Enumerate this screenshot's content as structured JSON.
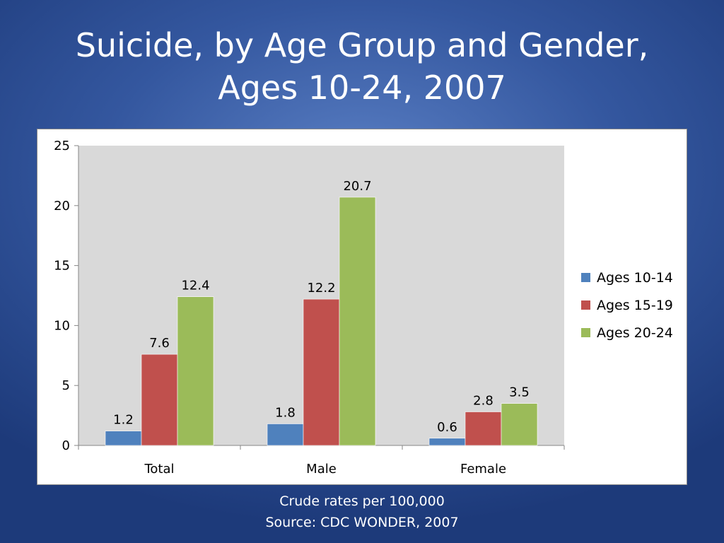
{
  "slide": {
    "title_line1": "Suicide, by Age Group and Gender,",
    "title_line2": "Ages 10-24, 2007",
    "caption_line1": "Crude rates per 100,000",
    "caption_line2": "Source: CDC WONDER, 2007"
  },
  "chart_data": {
    "type": "bar",
    "title": "",
    "xlabel": "",
    "ylabel": "",
    "categories": [
      "Total",
      "Male",
      "Female"
    ],
    "series": [
      {
        "name": "Ages 10-14",
        "values": [
          1.2,
          1.8,
          0.6
        ],
        "color": "#4f81bd"
      },
      {
        "name": "Ages 15-19",
        "values": [
          7.6,
          12.2,
          2.8
        ],
        "color": "#c0504d"
      },
      {
        "name": "Ages 20-24",
        "values": [
          12.4,
          20.7,
          3.5
        ],
        "color": "#9bbb59"
      }
    ],
    "ylim": [
      0,
      25
    ],
    "yticks": [
      0,
      5,
      10,
      15,
      20,
      25
    ],
    "grid": false,
    "plot_background": "#d9d9d9",
    "legend": "right"
  }
}
